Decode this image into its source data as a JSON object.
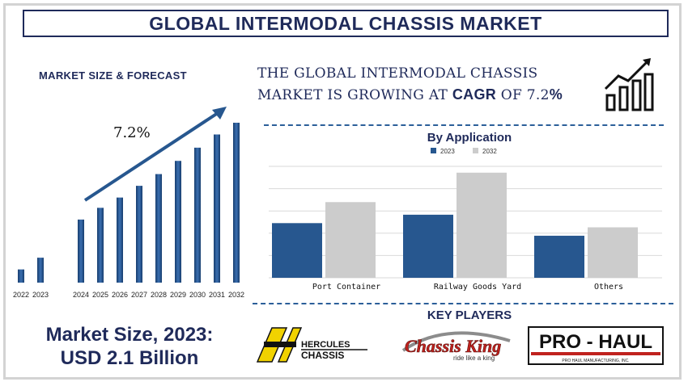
{
  "header": {
    "title": "GLOBAL INTERMODAL CHASSIS MARKET"
  },
  "forecast": {
    "heading": "MARKET SIZE & FORECAST",
    "cagr_label": "7.2%"
  },
  "headline": {
    "line1": "THE GLOBAL INTERMODAL CHASSIS",
    "line2_prefix": "MARKET IS GROWING AT ",
    "cagr_word": "CAGR",
    "line2_mid": " OF  7.2",
    "percent": "%"
  },
  "key_players": {
    "title": "KEY PLAYERS",
    "hercules_line1": "HERCULES",
    "hercules_line2": "CHASSIS",
    "chassis_king": "Chassis King",
    "chassis_king_tagline": "ride like a king",
    "prohaul": "PRO - HAUL",
    "prohaul_sub": "PRO HAUL MANUFACTURING, INC."
  },
  "market_size": {
    "line1": "Market Size, 2023:",
    "line2": "USD 2.1 Billion"
  },
  "colors": {
    "navy": "#1f2a5a",
    "bar_2023": "#27578f",
    "bar_2032": "#cccccc",
    "accent": "#2b5f99"
  },
  "chart_data": [
    {
      "type": "bar",
      "title": "",
      "categories": [
        "2022",
        "2023",
        "2024",
        "2025",
        "2026",
        "2027",
        "2028",
        "2029",
        "2030",
        "2031",
        "2032"
      ],
      "values": [
        0.9,
        1.7,
        4.3,
        5.1,
        5.8,
        6.6,
        7.4,
        8.3,
        9.2,
        10.1,
        10.9
      ],
      "ylim": [
        0,
        12
      ],
      "annotation": "7.2%",
      "grid": false
    },
    {
      "type": "bar",
      "title": "By Application",
      "categories": [
        "Port Container",
        "Railway Goods Yard",
        "Others"
      ],
      "series": [
        {
          "name": "2023",
          "values": [
            2.6,
            3.0,
            2.0
          ]
        },
        {
          "name": "2032",
          "values": [
            3.6,
            5.0,
            2.4
          ]
        }
      ],
      "ylim": [
        0,
        5.3
      ],
      "grid": true,
      "legend": "top-center"
    }
  ]
}
